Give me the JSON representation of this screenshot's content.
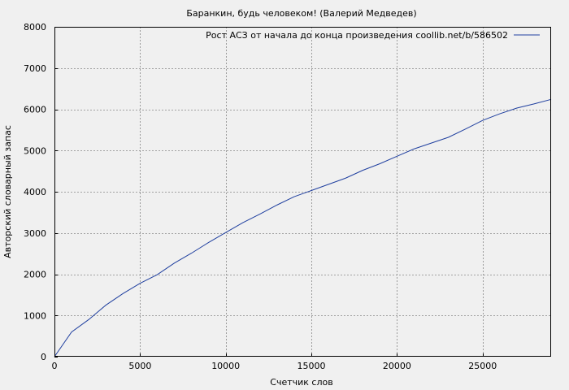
{
  "chart_data": {
    "type": "line",
    "title": "Баранкин, будь человеком! (Валерий Медведев)",
    "xlabel": "Счетчик слов",
    "ylabel": "Авторский словарный запас",
    "xlim": [
      0,
      29000
    ],
    "ylim": [
      0,
      8000
    ],
    "xticks": [
      "0",
      "5000",
      "10000",
      "15000",
      "20000",
      "25000"
    ],
    "yticks": [
      "0",
      "1000",
      "2000",
      "3000",
      "4000",
      "5000",
      "6000",
      "7000",
      "8000"
    ],
    "grid": true,
    "legend_position": "top-right",
    "series": [
      {
        "name": "Рост АСЗ от начала до конца произведения coollib.net/b/586502",
        "color": "#1f3f9f",
        "x": [
          0,
          1000,
          2000,
          3000,
          4000,
          5000,
          6000,
          7000,
          8000,
          9000,
          10000,
          11000,
          12000,
          13000,
          14000,
          15000,
          16000,
          17000,
          18000,
          19000,
          20000,
          21000,
          22000,
          23000,
          24000,
          25000,
          26000,
          27000,
          28000,
          29000
        ],
        "y": [
          0,
          600,
          900,
          1250,
          1530,
          1780,
          1990,
          2270,
          2510,
          2770,
          3010,
          3250,
          3460,
          3680,
          3880,
          4030,
          4180,
          4330,
          4520,
          4680,
          4860,
          5040,
          5180,
          5320,
          5520,
          5730,
          5890,
          6030,
          6130,
          6240
        ]
      }
    ]
  }
}
